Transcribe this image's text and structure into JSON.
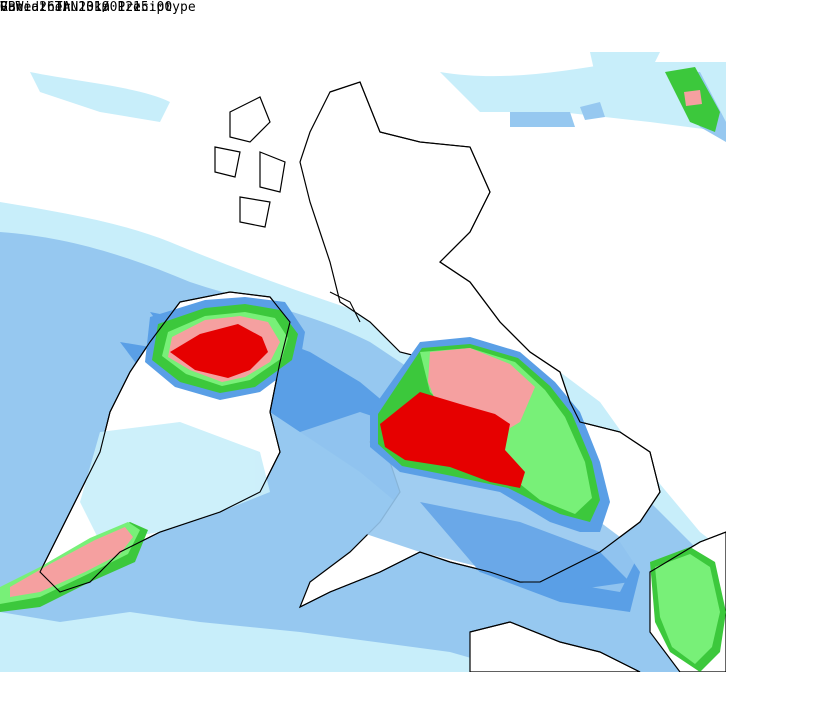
{
  "header": {
    "title": "GBWeather 10km Preciptype",
    "valid": "Valid: Thu 31/01 15:00"
  },
  "footer": {
    "run": "Run: 26JAN2019 12z"
  },
  "colors": {
    "background": "#ffffff",
    "precip_light": "#c8eefa",
    "precip_mid": "#96c8f0",
    "precip_heavy": "#4b9be6",
    "precip_deep": "#5a8cdc",
    "rain_green_light": "#78f078",
    "rain_green": "#3cc83c",
    "snow_pink": "#f5a0a0",
    "snow_red": "#e60000",
    "coastline": "#000000"
  }
}
